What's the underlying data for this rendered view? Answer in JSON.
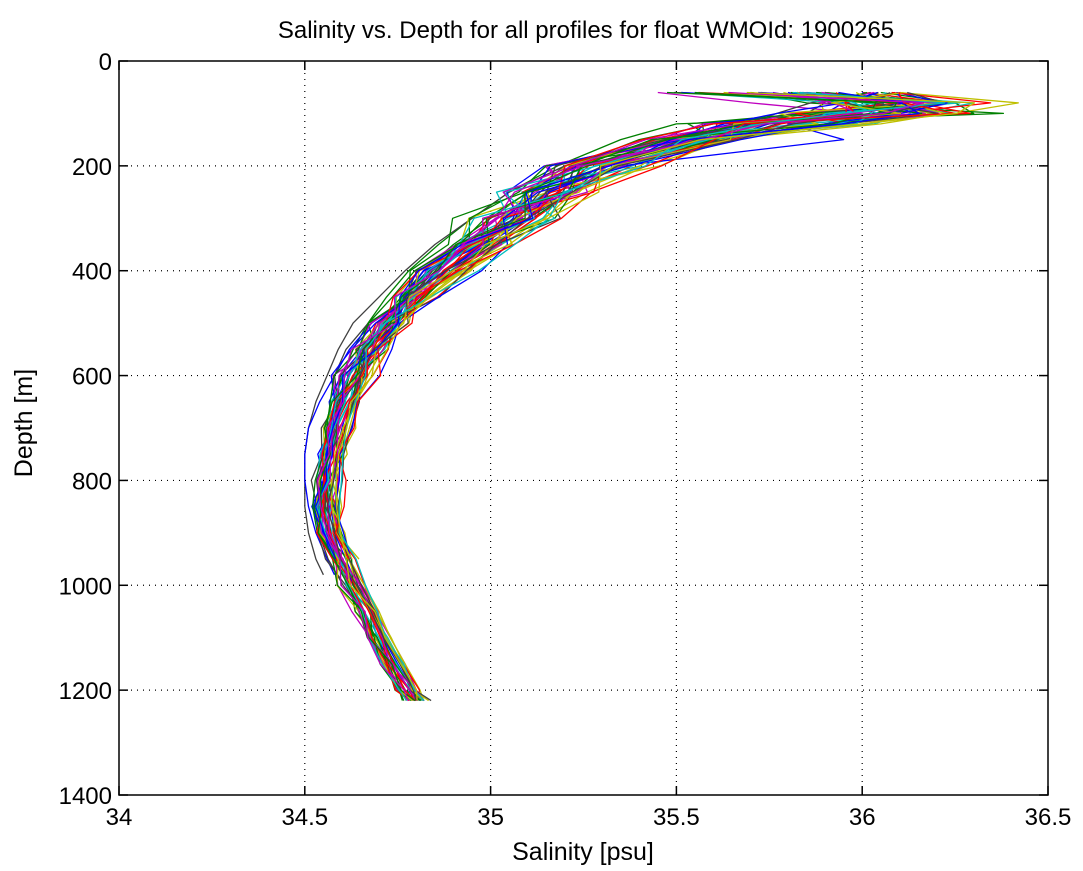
{
  "chart_data": {
    "type": "line",
    "title": "Salinity vs. Depth for all profiles for float WMOId: 1900265",
    "xlabel": "Salinity [psu]",
    "ylabel": "Depth [m]",
    "xlim": [
      34,
      36.5
    ],
    "ylim": [
      0,
      1400
    ],
    "y_reversed": true,
    "grid": true,
    "legend": "none",
    "xticks": [
      "34",
      "34.5",
      "35",
      "35.5",
      "36",
      "36.5"
    ],
    "yticks": [
      "0",
      "200",
      "400",
      "600",
      "800",
      "1000",
      "1200",
      "1400"
    ],
    "xtick_values": [
      34,
      34.5,
      35,
      35.5,
      36,
      36.5
    ],
    "ytick_values": [
      0,
      200,
      400,
      600,
      800,
      1000,
      1200,
      1400
    ],
    "colors": [
      "#0000ff",
      "#008000",
      "#ff0000",
      "#00bfbf",
      "#bf00bf",
      "#bfbf00",
      "#404040"
    ],
    "depth": [
      60,
      80,
      100,
      120,
      150,
      200,
      250,
      300,
      350,
      400,
      450,
      500,
      550,
      600,
      650,
      700,
      750,
      800,
      850,
      900,
      950,
      1000,
      1050,
      1100,
      1150,
      1200,
      1220
    ],
    "mean_salinity": [
      35.95,
      36.1,
      36.05,
      35.8,
      35.55,
      35.3,
      35.17,
      35.07,
      34.98,
      34.88,
      34.8,
      34.73,
      34.68,
      34.64,
      34.61,
      34.59,
      34.575,
      34.565,
      34.56,
      34.57,
      34.6,
      34.63,
      34.67,
      34.7,
      34.74,
      34.78,
      34.8
    ],
    "series": [
      {
        "color": "#0000ff",
        "depth": [
          60,
          80,
          100,
          120,
          150,
          200,
          250,
          300,
          350,
          400,
          450,
          500,
          550,
          600,
          650,
          700,
          750,
          800,
          850,
          900,
          950,
          1000,
          1050,
          1100,
          1150,
          1200,
          1220
        ],
        "salinity": [
          35.8,
          35.95,
          35.9,
          35.72,
          35.52,
          35.3,
          35.18,
          35.08,
          34.98,
          34.88,
          34.81,
          34.74,
          34.69,
          34.65,
          34.62,
          34.6,
          34.585,
          34.575,
          34.57,
          34.58,
          34.61,
          34.64,
          34.68,
          34.71,
          34.75,
          34.79,
          34.81
        ]
      },
      {
        "color": "#008000",
        "depth": [
          60,
          80,
          100,
          120,
          150,
          200,
          250,
          300,
          350,
          400,
          450,
          500,
          550,
          600,
          650,
          700,
          750,
          800,
          850,
          900,
          950,
          1000,
          1050,
          1100,
          1150,
          1200,
          1220
        ],
        "salinity": [
          36.05,
          36.25,
          36.3,
          35.5,
          35.35,
          35.18,
          35.05,
          34.95,
          34.86,
          34.78,
          34.72,
          34.67,
          34.63,
          34.6,
          34.58,
          34.565,
          34.555,
          34.55,
          34.55,
          34.56,
          34.59,
          34.62,
          34.66,
          34.69,
          34.73,
          34.77,
          34.79
        ]
      },
      {
        "color": "#ff0000",
        "depth": [
          60,
          80,
          100,
          120,
          150,
          200,
          250,
          300,
          350,
          400,
          450,
          500,
          550,
          600,
          650,
          700,
          750,
          800,
          850,
          900,
          950,
          1000,
          1050,
          1100,
          1150,
          1200,
          1220
        ],
        "salinity": [
          35.9,
          36.12,
          36.1,
          35.9,
          35.6,
          35.38,
          35.22,
          35.12,
          35.02,
          34.9,
          34.82,
          34.75,
          34.7,
          34.66,
          34.63,
          34.61,
          34.6,
          34.59,
          34.58,
          34.59,
          34.62,
          34.65,
          34.69,
          34.72,
          34.76,
          34.8,
          34.82
        ]
      },
      {
        "color": "#00bfbf",
        "depth": [
          60,
          80,
          100,
          120,
          150,
          200,
          250,
          300,
          350,
          400,
          450,
          500,
          550,
          600,
          650,
          700,
          750,
          800,
          850,
          900,
          950,
          1000,
          1050,
          1100,
          1150,
          1200,
          1220
        ],
        "salinity": [
          35.85,
          36.3,
          36.15,
          35.85,
          35.55,
          35.28,
          35.15,
          35.05,
          34.95,
          34.86,
          34.79,
          34.72,
          34.67,
          34.63,
          34.6,
          34.58,
          34.57,
          34.56,
          34.555,
          34.565,
          34.6,
          34.63,
          34.66,
          34.7,
          34.74,
          34.78,
          34.8
        ]
      },
      {
        "color": "#bf00bf",
        "depth": [
          60,
          80,
          100,
          120,
          150,
          200,
          250,
          300,
          350,
          400,
          450,
          500,
          550,
          600,
          650,
          700,
          750,
          800,
          850,
          900,
          950,
          1000,
          1050,
          1100,
          1150,
          1200,
          1220
        ],
        "salinity": [
          35.45,
          35.7,
          36.0,
          35.75,
          35.5,
          35.25,
          35.12,
          35.02,
          34.93,
          34.84,
          34.77,
          34.71,
          34.66,
          34.62,
          34.6,
          34.58,
          34.565,
          34.555,
          34.55,
          34.56,
          34.6,
          34.64,
          34.69,
          34.73,
          34.77,
          34.8,
          34.81
        ]
      },
      {
        "color": "#bfbf00",
        "depth": [
          60,
          80,
          100,
          120,
          150,
          200,
          250,
          300,
          350,
          400,
          450,
          500,
          550,
          600,
          650,
          700,
          750,
          800,
          850,
          900,
          950,
          1000,
          1050,
          1100,
          1150,
          1200,
          1220
        ],
        "salinity": [
          36.1,
          36.42,
          36.25,
          35.95,
          35.65,
          35.42,
          35.26,
          35.14,
          35.03,
          34.92,
          34.83,
          34.76,
          34.71,
          34.67,
          34.64,
          34.62,
          34.6,
          34.59,
          34.585,
          34.59,
          34.62,
          34.66,
          34.7,
          34.73,
          34.77,
          34.81,
          34.82
        ]
      },
      {
        "color": "#404040",
        "depth": [
          60,
          80,
          100,
          120,
          150,
          200,
          250,
          300,
          350,
          400,
          450,
          500,
          550,
          600,
          650,
          700,
          750,
          800,
          850,
          900,
          950,
          980
        ],
        "salinity": [
          35.7,
          35.9,
          35.85,
          35.7,
          35.45,
          35.2,
          35.05,
          34.95,
          34.85,
          34.77,
          34.7,
          34.63,
          34.59,
          34.56,
          34.53,
          34.51,
          34.5,
          34.5,
          34.5,
          34.51,
          34.53,
          34.55
        ]
      },
      {
        "color": "#0000ff",
        "depth": [
          60,
          80,
          100,
          120,
          150,
          200,
          250,
          300,
          350,
          400,
          450,
          500,
          550,
          600,
          650,
          700,
          750,
          800,
          850,
          900,
          950,
          980
        ],
        "salinity": [
          36.0,
          36.15,
          36.05,
          35.8,
          35.95,
          35.35,
          35.2,
          35.1,
          34.99,
          34.88,
          34.78,
          34.68,
          34.62,
          34.58,
          34.54,
          34.51,
          34.5,
          34.5,
          34.51,
          34.53,
          34.56,
          34.58
        ]
      },
      {
        "color": "#008000",
        "depth": [
          60,
          80,
          100,
          120,
          150,
          200,
          250,
          300,
          350,
          400,
          450,
          500,
          550,
          600,
          650,
          700,
          750,
          800,
          850,
          900,
          950,
          1000,
          1050,
          1100,
          1150,
          1200,
          1220
        ],
        "salinity": [
          35.7,
          35.85,
          36.38,
          35.6,
          35.4,
          35.22,
          35.1,
          35.0,
          34.9,
          34.82,
          34.76,
          34.7,
          34.65,
          34.62,
          34.6,
          34.58,
          34.57,
          34.565,
          34.56,
          34.57,
          34.6,
          34.64,
          34.68,
          34.72,
          34.76,
          34.8,
          34.81
        ]
      }
    ]
  }
}
